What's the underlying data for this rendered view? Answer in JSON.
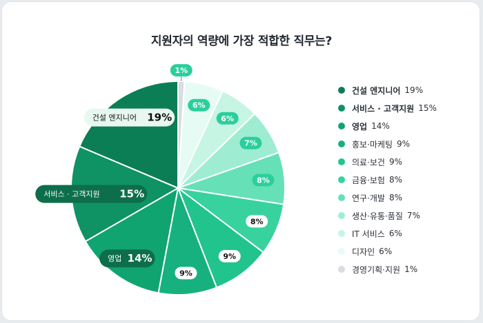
{
  "chart_data": {
    "type": "pie",
    "title": "지원자의 역량에 가장 적합한 직무는?",
    "slices": [
      {
        "label": "경영기획·지원",
        "value": 1,
        "pct": "1%",
        "color": "#d9dde2",
        "tag_color": "#2bcf9c",
        "tag_text": "#ffffff"
      },
      {
        "label": "디자인",
        "value": 6,
        "pct": "6%",
        "color": "#e6fbf4",
        "tag_color": "#2bcf9c",
        "tag_text": "#ffffff"
      },
      {
        "label": "IT 서비스",
        "value": 6,
        "pct": "6%",
        "color": "#c6f5e4",
        "tag_color": "#2bcf9c",
        "tag_text": "#ffffff"
      },
      {
        "label": "생산·유통·품질",
        "value": 7,
        "pct": "7%",
        "color": "#9eedd2",
        "tag_color": "#2bcf9c",
        "tag_text": "#ffffff"
      },
      {
        "label": "연구·개발",
        "value": 8,
        "pct": "8%",
        "color": "#66e0b7",
        "tag_color": "#2bcf9c",
        "tag_text": "#ffffff"
      },
      {
        "label": "금융·보험",
        "value": 8,
        "pct": "8%",
        "color": "#38d29f",
        "tag_color": "#ffffff",
        "tag_text": "#111111"
      },
      {
        "label": "의료·보건",
        "value": 9,
        "pct": "9%",
        "color": "#21c48d",
        "tag_color": "#ffffff",
        "tag_text": "#111111"
      },
      {
        "label": "홍보·마케팅",
        "value": 9,
        "pct": "9%",
        "color": "#16b17e",
        "tag_color": "#ffffff",
        "tag_text": "#111111"
      },
      {
        "label": "영업",
        "value": 14,
        "pct": "14%",
        "color": "#10a470",
        "tag_color": "#0d6e4b",
        "tag_text": "#ffffff"
      },
      {
        "label": "서비스·고객지원",
        "value": 15,
        "pct": "15%",
        "color": "#0f9264",
        "tag_color": "#0d6e4b",
        "tag_text": "#ffffff"
      },
      {
        "label": "건설 엔지니어",
        "value": 19,
        "pct": "19%",
        "color": "#0c7e55",
        "tag_color": "#e8f8f1",
        "tag_text": "#111111"
      }
    ],
    "outside_labels": [
      {
        "slice": "건설 엔지니어",
        "name": "건설 엔지니어",
        "pct": "19%"
      },
      {
        "slice": "서비스·고객지원",
        "name": "서비스 · 고객지원",
        "pct": "15%"
      },
      {
        "slice": "영업",
        "name": "영업",
        "pct": "14%"
      }
    ]
  },
  "legend": [
    {
      "label": "건설 엔지니어",
      "pct": "19%",
      "color": "#0c7e55",
      "bold": true
    },
    {
      "label": "서비스 · 고객지원",
      "pct": "15%",
      "color": "#0f9264",
      "bold": true
    },
    {
      "label": "영업",
      "pct": "14%",
      "color": "#10a470",
      "bold": true
    },
    {
      "label": "홍보·마케팅",
      "pct": "9%",
      "color": "#16b17e",
      "bold": false
    },
    {
      "label": "의료·보건",
      "pct": "9%",
      "color": "#21c48d",
      "bold": false
    },
    {
      "label": "금융·보험",
      "pct": "8%",
      "color": "#38d29f",
      "bold": false
    },
    {
      "label": "연구·개발",
      "pct": "8%",
      "color": "#66e0b7",
      "bold": false
    },
    {
      "label": "생산·유통·품질",
      "pct": "7%",
      "color": "#9eedd2",
      "bold": false
    },
    {
      "label": "IT 서비스",
      "pct": "6%",
      "color": "#c6f5e4",
      "bold": false
    },
    {
      "label": "디자인",
      "pct": "6%",
      "color": "#e6fbf4",
      "bold": false
    },
    {
      "label": "경영기획·지원",
      "pct": "1%",
      "color": "#d9dde2",
      "bold": false
    }
  ]
}
